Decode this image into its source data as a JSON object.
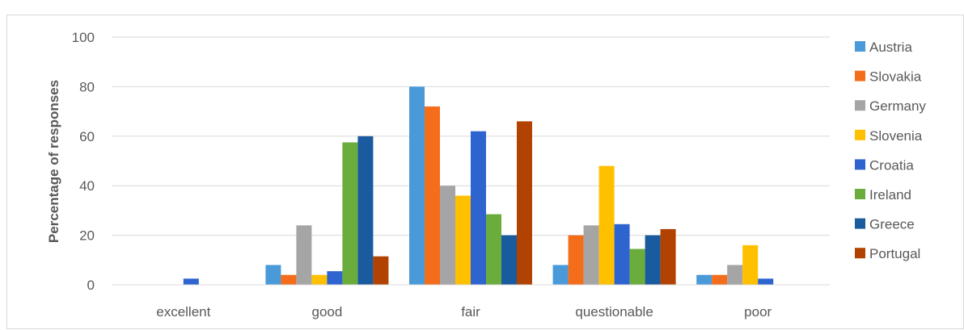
{
  "chart_data": {
    "type": "bar",
    "title": "",
    "xlabel": "",
    "ylabel": "Percentage of responses",
    "ylim": [
      0,
      100
    ],
    "yticks": [
      0,
      20,
      40,
      60,
      80,
      100
    ],
    "grid": true,
    "legend_position": "right",
    "categories": [
      "excellent",
      "good",
      "fair",
      "questionable",
      "poor"
    ],
    "series": [
      {
        "name": "Austria",
        "color": "#4a9ad9",
        "values": [
          0,
          8,
          80,
          8,
          4
        ]
      },
      {
        "name": "Slovakia",
        "color": "#f46d1b",
        "values": [
          0,
          4,
          72,
          20,
          4
        ]
      },
      {
        "name": "Germany",
        "color": "#a5a5a5",
        "values": [
          0,
          24,
          40,
          24,
          8
        ]
      },
      {
        "name": "Slovenia",
        "color": "#ffc000",
        "values": [
          0,
          4,
          36,
          48,
          16
        ]
      },
      {
        "name": "Croatia",
        "color": "#2e64d0",
        "values": [
          2.5,
          5.5,
          62,
          24.5,
          2.5
        ]
      },
      {
        "name": "Ireland",
        "color": "#6aad3c",
        "values": [
          0,
          57.5,
          28.5,
          14.5,
          0
        ]
      },
      {
        "name": "Greece",
        "color": "#1a5a9e",
        "values": [
          0,
          60,
          20,
          20,
          0
        ]
      },
      {
        "name": "Portugal",
        "color": "#b14202",
        "values": [
          0,
          11.5,
          66,
          22.5,
          0
        ]
      }
    ]
  }
}
